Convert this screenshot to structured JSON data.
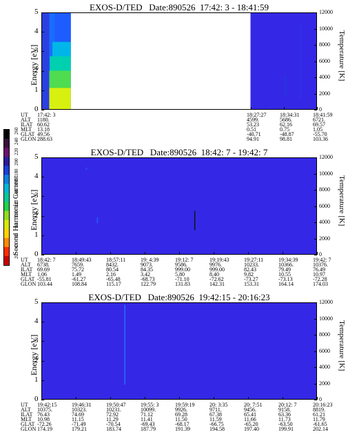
{
  "colorbar": {
    "label": "Second Harmonic Current",
    "ticks": [
      "260",
      "240",
      "220",
      "200",
      "180",
      "160",
      "140",
      "120",
      "100",
      "80",
      "60",
      "40",
      "20"
    ],
    "colors": [
      "#000000",
      "#3b0f3b",
      "#6a0f6a",
      "#2a1c9a",
      "#1a3fd8",
      "#0a7fe0",
      "#00b6d6",
      "#00c89a",
      "#22d04a",
      "#8fdc1c",
      "#d8e60a",
      "#ffd200",
      "#ff8a00",
      "#ff2b00",
      "#c80000"
    ]
  },
  "chart_data": [
    {
      "type": "heatmap",
      "title": "EXOS-D/TED   Date:890526  17:42: 3 - 18:41:59",
      "ylabel": "Energy [eV]",
      "ylabel_right": "Temperature [K]",
      "ylim": [
        0,
        5
      ],
      "ylim_right": [
        0,
        12000
      ],
      "yticks": [
        "0",
        "1",
        "2",
        "3",
        "4",
        "5"
      ],
      "yticks_right": [
        "0",
        "2000",
        "4000",
        "6000",
        "8000",
        "10000",
        "12000"
      ],
      "data_coverage": [
        [
          0,
          0.105
        ],
        [
          0.76,
          1.0
        ]
      ],
      "ephemeris": {
        "labels": [
          "UT",
          "ALT",
          "ILAT",
          "MLT",
          "GLAT",
          "GLON"
        ],
        "columns": [
          {
            "pos": 0.0,
            "values": [
              "17:42: 3",
              "1180.",
              "60.62",
              "13.18",
              "49.56",
              "288.63"
            ]
          },
          {
            "pos": 0.76,
            "values": [
              "18:27:27",
              "4599.",
              "53.23",
              "0.51",
              "-40.71",
              "94.91"
            ]
          },
          {
            "pos": 0.88,
            "values": [
              "18:34:31",
              "5686.",
              "62.16",
              "0.75",
              "-48.87",
              "98.81"
            ]
          },
          {
            "pos": 1.0,
            "values": [
              "18:41:59",
              "6721.",
              "69.57",
              "1.05",
              "-55.70",
              "103.36"
            ]
          }
        ]
      }
    },
    {
      "type": "heatmap",
      "title": "EXOS-D/TED   Date:890526  18:42: 7 - 19:42: 7",
      "ylabel": "Energy [eV]",
      "ylabel_right": "Temperature [K]",
      "ylim": [
        0,
        5
      ],
      "ylim_right": [
        0,
        12000
      ],
      "yticks": [
        "0",
        "1",
        "2",
        "3",
        "4",
        "5"
      ],
      "yticks_right": [
        "0",
        "2000",
        "4000",
        "6000",
        "8000",
        "10000",
        "12000"
      ],
      "data_coverage": [
        [
          0,
          1.0
        ]
      ],
      "ephemeris": {
        "labels": [
          "UT",
          "ALT",
          "ILAT",
          "MLT",
          "GLAT",
          "GLON"
        ],
        "columns": [
          {
            "pos": 0.0,
            "values": [
              "18:42: 7",
              "6738.",
              "69.69",
              "1.06",
              "-55.81",
              "103.44"
            ]
          },
          {
            "pos": 0.125,
            "values": [
              "18:49:43",
              "7659.",
              "75.72",
              "1.49",
              "-61.27",
              "108.84"
            ]
          },
          {
            "pos": 0.25,
            "values": [
              "18:57:11",
              "8432.",
              "80.54",
              "2.16",
              "-65.48",
              "115.17"
            ]
          },
          {
            "pos": 0.375,
            "values": [
              "19: 4:39",
              "9073.",
              "84.35",
              "3.42",
              "-68.73",
              "122.79"
            ]
          },
          {
            "pos": 0.5,
            "values": [
              "19:12: 7",
              "9586.",
              "999.00",
              "5.80",
              "-71.10",
              "131.83"
            ]
          },
          {
            "pos": 0.625,
            "values": [
              "19:19:43",
              "9976.",
              "999.00",
              "8.40",
              "-72.62",
              "142.31"
            ]
          },
          {
            "pos": 0.75,
            "values": [
              "19:27:11",
              "10233.",
              "82.43",
              "9.82",
              "-73.27",
              "153.31"
            ]
          },
          {
            "pos": 0.875,
            "values": [
              "19:34:39",
              "10366.",
              "79.49",
              "10.55",
              "-73.13",
              "164.14"
            ]
          },
          {
            "pos": 1.0,
            "values": [
              "19:42: 7",
              "10376.",
              "76.49",
              "10.97",
              "-72.28",
              "174.03"
            ]
          }
        ]
      }
    },
    {
      "type": "heatmap",
      "title": "EXOS-D/TED   Date:890526  19:42:15 - 20:16:23",
      "ylabel": "Energy [eV]",
      "ylabel_right": "Temperature [K]",
      "ylim": [
        0,
        5
      ],
      "ylim_right": [
        0,
        12000
      ],
      "yticks": [
        "0",
        "1",
        "2",
        "3",
        "4",
        "5"
      ],
      "yticks_right": [
        "0",
        "2000",
        "4000",
        "6000",
        "8000",
        "10000",
        "12000"
      ],
      "data_coverage": [
        [
          0,
          1.0
        ]
      ],
      "ephemeris": {
        "labels": [
          "UT",
          "ALT",
          "ILAT",
          "MLT",
          "GLAT",
          "GLON"
        ],
        "columns": [
          {
            "pos": 0.0,
            "values": [
              "19:42:15",
              "10375.",
              "76.43",
              "10.98",
              "-72.26",
              "174.19"
            ]
          },
          {
            "pos": 0.125,
            "values": [
              "19:46:31",
              "10323.",
              "74.69",
              "11.15",
              "-71.49",
              "179.21"
            ]
          },
          {
            "pos": 0.25,
            "values": [
              "19:50:47",
              "10231.",
              "72.92",
              "11.29",
              "-70.54",
              "183.74"
            ]
          },
          {
            "pos": 0.375,
            "values": [
              "19:55: 3",
              "10099.",
              "71.12",
              "11.41",
              "-69.43",
              "187.79"
            ]
          },
          {
            "pos": 0.5,
            "values": [
              "19:59:19",
              "9926.",
              "69.28",
              "11.50",
              "-68.17",
              "191.39"
            ]
          },
          {
            "pos": 0.625,
            "values": [
              "20: 3:35",
              "9711.",
              "67.38",
              "11.59",
              "-66.75",
              "194.58"
            ]
          },
          {
            "pos": 0.75,
            "values": [
              "20: 7:51",
              "9456.",
              "65.41",
              "11.66",
              "-65.20",
              "197.40"
            ]
          },
          {
            "pos": 0.875,
            "values": [
              "20:12: 7",
              "9158.",
              "63.36",
              "11.73",
              "-63.50",
              "199.91"
            ]
          },
          {
            "pos": 1.0,
            "values": [
              "20:16:23",
              "8819.",
              "61.21",
              "11.79",
              "-61.65",
              "202.14"
            ]
          }
        ]
      }
    }
  ]
}
